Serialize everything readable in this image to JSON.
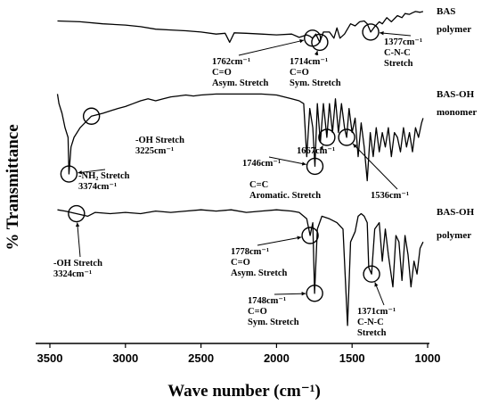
{
  "chart_data": {
    "type": "line",
    "xlabel": "Wave number (cm⁻¹)",
    "ylabel": "% Transmittance",
    "xlim": [
      3500,
      1000
    ],
    "x_reversed": true,
    "xticks": [
      "3500",
      "3000",
      "2500",
      "2000",
      "1500",
      "1000"
    ],
    "series": [
      {
        "name": "BAS polymer",
        "label_lines": [
          "BAS",
          "polymer"
        ],
        "x": [
          3450,
          3300,
          3150,
          3000,
          2900,
          2800,
          2700,
          2600,
          2500,
          2400,
          2340,
          2310,
          2280,
          2200,
          2100,
          2000,
          1900,
          1850,
          1800,
          1780,
          1762,
          1740,
          1714,
          1690,
          1650,
          1620,
          1600,
          1580,
          1550,
          1510,
          1480,
          1450,
          1420,
          1400,
          1377,
          1350,
          1320,
          1300,
          1270,
          1240,
          1200,
          1170,
          1150,
          1120,
          1100,
          1080,
          1050,
          1030
        ],
        "y": [
          0.62,
          0.6,
          0.55,
          0.52,
          0.48,
          0.42,
          0.4,
          0.38,
          0.35,
          0.3,
          0.32,
          0.1,
          0.33,
          0.32,
          0.3,
          0.28,
          0.3,
          0.22,
          0.28,
          0.25,
          0.2,
          0.3,
          0.1,
          0.35,
          0.35,
          0.2,
          0.45,
          0.2,
          0.3,
          0.55,
          0.5,
          0.6,
          0.62,
          0.55,
          0.35,
          0.48,
          0.6,
          0.55,
          0.7,
          0.6,
          0.75,
          0.7,
          0.8,
          0.78,
          0.82,
          0.85,
          0.83,
          0.85
        ]
      },
      {
        "name": "BAS-OH monomer",
        "label_lines": [
          "BAS-OH",
          "monomer"
        ],
        "x": [
          3450,
          3440,
          3420,
          3400,
          3380,
          3374,
          3360,
          3340,
          3300,
          3225,
          3150,
          3050,
          3000,
          2950,
          2900,
          2850,
          2800,
          2750,
          2700,
          2650,
          2600,
          2550,
          2500,
          2400,
          2300,
          2200,
          2100,
          2000,
          1950,
          1900,
          1850,
          1820,
          1800,
          1780,
          1760,
          1746,
          1730,
          1710,
          1690,
          1667,
          1650,
          1630,
          1610,
          1590,
          1570,
          1550,
          1536,
          1520,
          1500,
          1480,
          1460,
          1440,
          1420,
          1400,
          1380,
          1360,
          1340,
          1320,
          1300,
          1280,
          1260,
          1240,
          1220,
          1200,
          1180,
          1160,
          1140,
          1120,
          1100,
          1080,
          1060,
          1040,
          1030
        ],
        "y": [
          0.95,
          0.85,
          0.75,
          0.6,
          0.5,
          0.12,
          0.4,
          0.5,
          0.6,
          0.72,
          0.75,
          0.8,
          0.82,
          0.85,
          0.88,
          0.9,
          0.88,
          0.9,
          0.92,
          0.93,
          0.94,
          0.93,
          0.94,
          0.95,
          0.95,
          0.95,
          0.95,
          0.94,
          0.92,
          0.9,
          0.88,
          0.85,
          0.3,
          0.8,
          0.6,
          0.2,
          0.85,
          0.45,
          0.85,
          0.5,
          0.85,
          0.55,
          0.9,
          0.55,
          0.85,
          0.6,
          0.5,
          0.8,
          0.55,
          0.7,
          0.3,
          0.65,
          0.4,
          0.05,
          0.55,
          0.3,
          0.6,
          0.35,
          0.55,
          0.4,
          0.6,
          0.3,
          0.55,
          0.5,
          0.35,
          0.6,
          0.4,
          0.55,
          0.35,
          0.6,
          0.5,
          0.65,
          0.7
        ]
      },
      {
        "name": "BAS-OH polymer",
        "label_lines": [
          "BAS-OH",
          "polymer"
        ],
        "x": [
          3450,
          3400,
          3324,
          3250,
          3200,
          3100,
          3000,
          2900,
          2800,
          2700,
          2600,
          2500,
          2400,
          2300,
          2200,
          2100,
          2000,
          1900,
          1850,
          1820,
          1800,
          1778,
          1760,
          1748,
          1730,
          1700,
          1650,
          1600,
          1560,
          1530,
          1510,
          1480,
          1460,
          1440,
          1420,
          1400,
          1390,
          1371,
          1350,
          1320,
          1300,
          1280,
          1260,
          1230,
          1210,
          1190,
          1170,
          1150,
          1130,
          1110,
          1090,
          1070,
          1050,
          1030
        ],
        "y": [
          0.95,
          0.94,
          0.92,
          0.9,
          0.93,
          0.92,
          0.93,
          0.92,
          0.94,
          0.93,
          0.94,
          0.95,
          0.94,
          0.95,
          0.93,
          0.94,
          0.95,
          0.94,
          0.93,
          0.9,
          0.88,
          0.75,
          0.85,
          0.3,
          0.8,
          0.9,
          0.88,
          0.85,
          0.8,
          0.05,
          0.7,
          0.78,
          0.9,
          0.92,
          0.9,
          0.85,
          0.5,
          0.45,
          0.8,
          0.85,
          0.55,
          0.8,
          0.6,
          0.35,
          0.75,
          0.7,
          0.4,
          0.75,
          0.6,
          0.35,
          0.55,
          0.45,
          0.65,
          0.7
        ]
      }
    ],
    "annotations": [
      {
        "panel": 0,
        "at_x": 1762,
        "text_lines": [
          "1762cm⁻¹",
          "C=O",
          "Asym. Stretch"
        ]
      },
      {
        "panel": 0,
        "at_x": 1714,
        "text_lines": [
          "1714cm⁻¹",
          "C=O",
          "Sym. Stretch"
        ]
      },
      {
        "panel": 0,
        "at_x": 1377,
        "text_lines": [
          "1377cm⁻¹",
          "C-N-C",
          "Stretch"
        ]
      },
      {
        "panel": 1,
        "at_x": 3225,
        "text_lines": [
          "-OH Stretch",
          "3225cm⁻¹"
        ]
      },
      {
        "panel": 1,
        "at_x": 3374,
        "text_lines": [
          "-NH₂ Stretch",
          "3374cm⁻¹"
        ]
      },
      {
        "panel": 1,
        "at_x": 1746,
        "text_lines": [
          "1746cm⁻¹"
        ]
      },
      {
        "panel": 1,
        "at_x": 1667,
        "text_lines": [
          "1667cm⁻¹"
        ]
      },
      {
        "panel": 1,
        "at_x": 1536,
        "text_lines": [
          "1536cm⁻¹"
        ]
      },
      {
        "panel": 1,
        "at_x": 1700,
        "text_lines": [
          "C=C",
          "Aromatic. Stretch"
        ]
      },
      {
        "panel": 2,
        "at_x": 3324,
        "text_lines": [
          "-OH Stretch",
          "3324cm⁻¹"
        ]
      },
      {
        "panel": 2,
        "at_x": 1778,
        "text_lines": [
          "1778cm⁻¹",
          "C=O",
          "Asym. Stretch"
        ]
      },
      {
        "panel": 2,
        "at_x": 1748,
        "text_lines": [
          "1748cm⁻¹",
          "C=O",
          "Sym. Stretch"
        ]
      },
      {
        "panel": 2,
        "at_x": 1371,
        "text_lines": [
          "1371cm⁻¹",
          "C-N-C",
          "Stretch"
        ]
      }
    ],
    "grid": false
  }
}
